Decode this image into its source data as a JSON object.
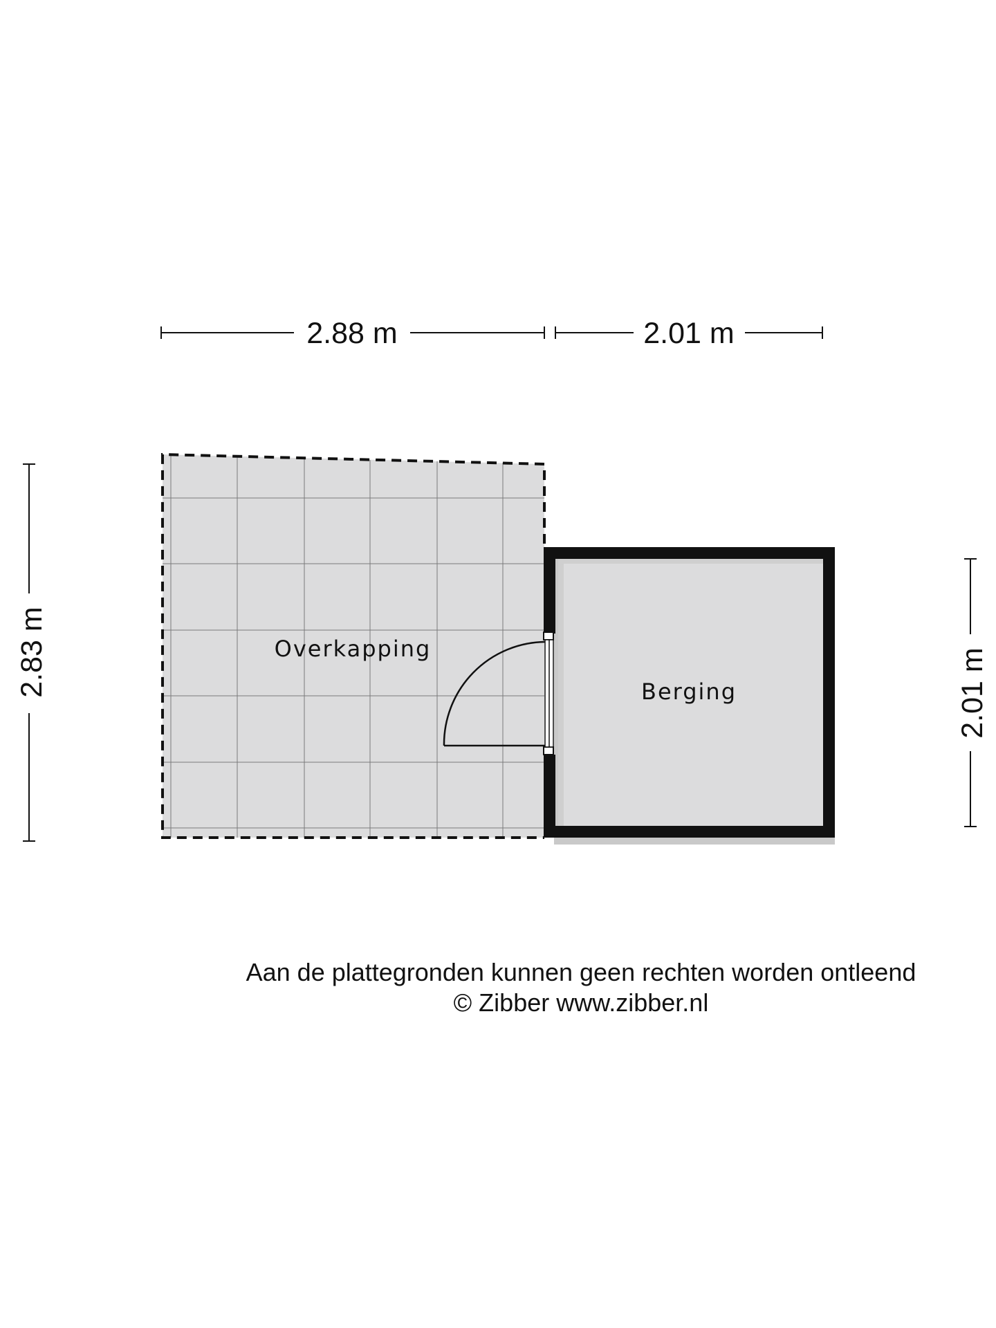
{
  "dimensions": {
    "top_left": "2.88 m",
    "top_right": "2.01 m",
    "left": "2.83 m",
    "right": "2.01 m"
  },
  "rooms": {
    "overkapping": "Overkapping",
    "berging": "Berging"
  },
  "footer": {
    "disclaimer": "Aan de plattegronden kunnen geen rechten worden ontleend",
    "copyright": "© Zibber www.zibber.nl"
  }
}
